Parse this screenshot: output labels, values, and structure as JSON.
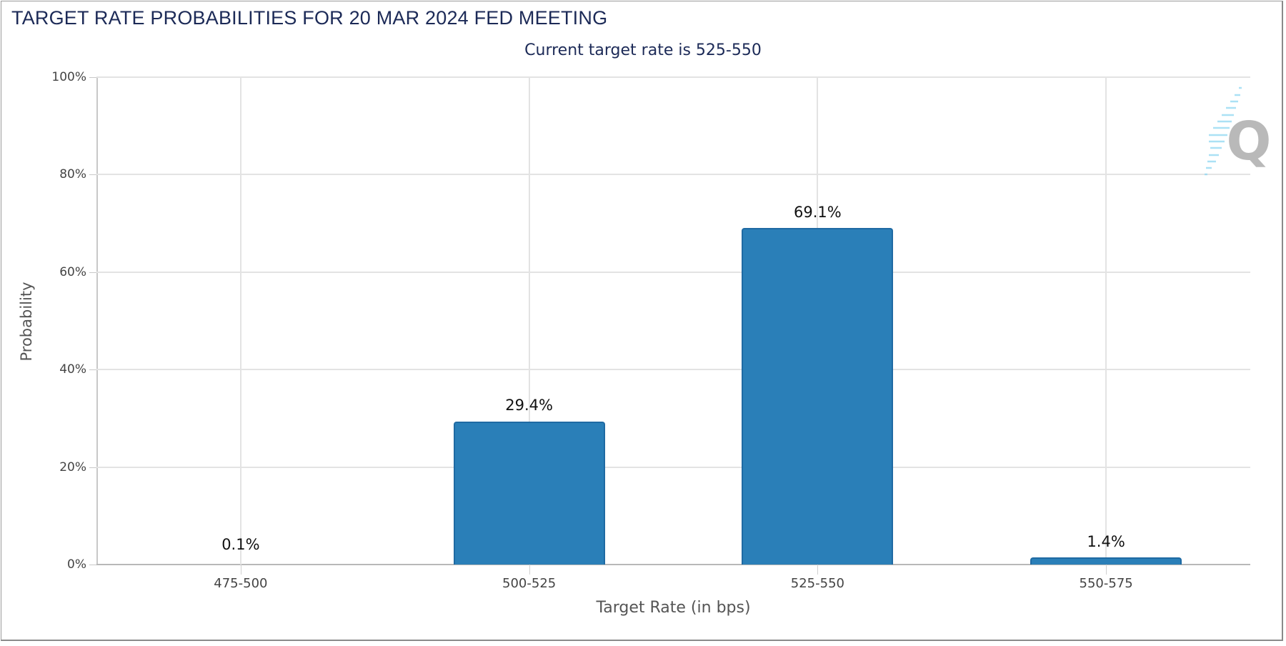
{
  "chart_data": {
    "type": "bar",
    "title": "TARGET RATE PROBABILITIES FOR 20 MAR 2024 FED MEETING",
    "subtitle": "Current target rate is 525-550",
    "xlabel": "Target Rate (in bps)",
    "ylabel": "Probability",
    "categories": [
      "475-500",
      "500-525",
      "525-550",
      "550-575"
    ],
    "values": [
      0.1,
      29.4,
      69.1,
      1.4
    ],
    "value_labels": [
      "0.1%",
      "29.4%",
      "69.1%",
      "1.4%"
    ],
    "ylim": [
      0,
      100
    ],
    "yticks": [
      "0%",
      "20%",
      "40%",
      "60%",
      "80%",
      "100%"
    ],
    "grid": true,
    "bar_color": "#2a7fb8",
    "legend": null
  },
  "branding": {
    "logo_icon": "q-logo-icon",
    "logo_letter": "Q"
  }
}
